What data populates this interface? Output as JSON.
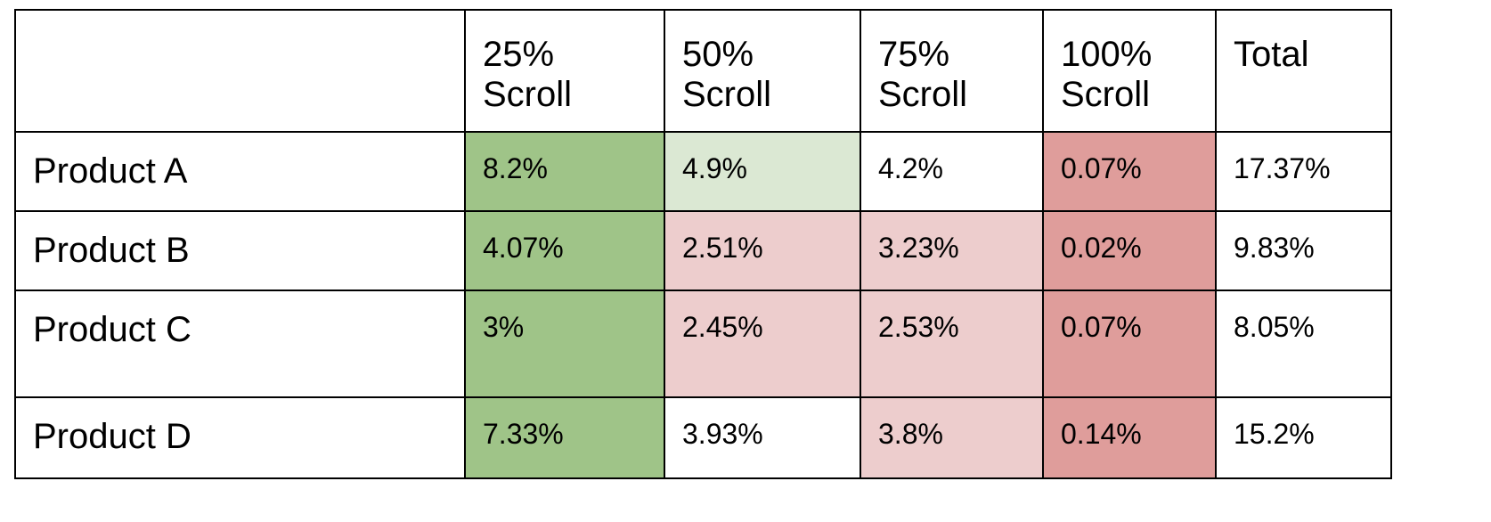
{
  "colors": {
    "green_strong": "#9fc488",
    "green_light": "#dbe8d3",
    "red_light": "#edcdcd",
    "red_strong": "#df9d9b",
    "none": "#ffffff"
  },
  "table": {
    "corner": "",
    "headers": [
      {
        "line1": "25%",
        "line2": "Scroll"
      },
      {
        "line1": "50%",
        "line2": "Scroll"
      },
      {
        "line1": "75%",
        "line2": "Scroll"
      },
      {
        "line1": "100%",
        "line2": "Scroll"
      },
      {
        "line1": "Total",
        "line2": ""
      }
    ],
    "rows": [
      {
        "label": "Product A",
        "cells": [
          "8.2%",
          "4.9%",
          "4.2%",
          "0.07%",
          "17.37%"
        ],
        "fills": [
          "green_strong",
          "green_light",
          "none",
          "red_strong",
          "none"
        ]
      },
      {
        "label": "Product B",
        "cells": [
          "4.07%",
          "2.51%",
          "3.23%",
          "0.02%",
          "9.83%"
        ],
        "fills": [
          "green_strong",
          "red_light",
          "red_light",
          "red_strong",
          "none"
        ]
      },
      {
        "label": "Product C",
        "cells": [
          "3%",
          "2.45%",
          "2.53%",
          "0.07%",
          "8.05%"
        ],
        "fills": [
          "green_strong",
          "red_light",
          "red_light",
          "red_strong",
          "none"
        ]
      },
      {
        "label": "Product D",
        "cells": [
          "7.33%",
          "3.93%",
          "3.8%",
          "0.14%",
          "15.2%"
        ],
        "fills": [
          "green_strong",
          "none",
          "red_light",
          "red_strong",
          "none"
        ]
      }
    ]
  }
}
